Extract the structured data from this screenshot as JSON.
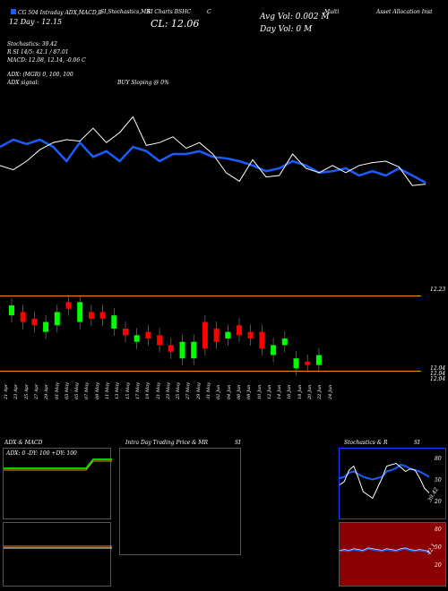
{
  "header": {
    "line1_left": "CG 504 Intraday ADX,MACD,B",
    "line1_stoch": "SI,Stochastics,MR",
    "line1_chart": "SI Charts BSHC",
    "line1_c": "C",
    "line1_right1": "Multi",
    "line1_right2": "Asset Allocation Inst",
    "line2_left": "12 Day - 12.15",
    "cl_label": "CL: 12.06",
    "avg_vol": "Avg Vol: 0.002 M",
    "day_vol": "Day Vol: 0 M",
    "stoch_value": "Stochastics: 39.42",
    "rsi_line": "R          SI 14/5: 42.1 / 87.01",
    "macd_line": "MACD: 12.08, 12.14, -0.06  C",
    "adx_line": "ADX:                    (MGR) 0,  100,  100",
    "adx_signal": "ADX  signal:",
    "buy_signal": "BUY Sloping @ 0%"
  },
  "price_labels": {
    "top": "12.23",
    "mid1": "12.04",
    "mid2": "12.04",
    "mid3": "12.04"
  },
  "dates": [
    "21 Apr",
    "23 Apr",
    "25 Apr",
    "27 Apr",
    "29 Apr",
    "01 May",
    "03 May",
    "05 May",
    "07 May",
    "09 May",
    "11 May",
    "13 May",
    "15 May",
    "17 May",
    "19 May",
    "21 May",
    "23 May",
    "25 May",
    "27 May",
    "29 May",
    "31 May",
    "02 Jun",
    "04 Jun",
    "06 Jun",
    "08 Jun",
    "10 Jun",
    "12 Jun",
    "14 Jun",
    "16 Jun",
    "18 Jun",
    "20 Jun",
    "22 Jun",
    "24 Jun"
  ],
  "bottom_panels": {
    "adx_title": "ADX  & MACD",
    "adx_values": "ADX: 0   -DY: 100   +DY: 100",
    "intraday_title": "Intra  Day Trading Price  & MR",
    "intraday_si": "SI",
    "stoch_title": "Stochastics & R",
    "stoch_si": "SI",
    "stoch_axis": [
      "80",
      "50",
      "20"
    ],
    "stoch_value_label": "39.42",
    "rsi_axis": [
      "80",
      "50",
      "20"
    ],
    "rsi_value_label": "42.1"
  },
  "colors": {
    "accent": "#1a5cff",
    "up": "#00ff00",
    "down": "#ff0000",
    "rsi_bg": "#8b0000",
    "panel_line": "#ff8c00"
  },
  "chart_data": {
    "type": "line",
    "series": [
      {
        "values": [
          65,
          70,
          67,
          70,
          65,
          55,
          68,
          58,
          62,
          55,
          65,
          62,
          55,
          60,
          60,
          62,
          58,
          57,
          55,
          52,
          48,
          50,
          55,
          52,
          47,
          48,
          50,
          45,
          48,
          45,
          50,
          45,
          40
        ]
      },
      {
        "values": [
          52,
          49,
          55,
          63,
          68,
          70,
          69,
          78,
          68,
          75,
          86,
          66,
          68,
          72,
          64,
          68,
          60,
          47,
          41,
          56,
          44,
          45,
          60,
          50,
          47,
          52,
          47,
          52,
          54,
          55,
          51,
          38,
          39
        ]
      }
    ],
    "candles": [
      {
        "o": 12.17,
        "c": 12.2,
        "up": true
      },
      {
        "o": 12.18,
        "c": 12.15,
        "up": false
      },
      {
        "o": 12.16,
        "c": 12.14,
        "up": false
      },
      {
        "o": 12.12,
        "c": 12.15,
        "up": true
      },
      {
        "o": 12.14,
        "c": 12.18,
        "up": true
      },
      {
        "o": 12.19,
        "c": 12.21,
        "up": false
      },
      {
        "o": 12.15,
        "c": 12.21,
        "up": true
      },
      {
        "o": 12.18,
        "c": 12.16,
        "up": false
      },
      {
        "o": 12.18,
        "c": 12.16,
        "up": false
      },
      {
        "o": 12.13,
        "c": 12.17,
        "up": true
      },
      {
        "o": 12.13,
        "c": 12.11,
        "up": false
      },
      {
        "o": 12.09,
        "c": 12.11,
        "up": true
      },
      {
        "o": 12.12,
        "c": 12.1,
        "up": false
      },
      {
        "o": 12.11,
        "c": 12.08,
        "up": false
      },
      {
        "o": 12.06,
        "c": 12.08,
        "up": false
      },
      {
        "o": 12.04,
        "c": 12.09,
        "up": true
      },
      {
        "o": 12.04,
        "c": 12.09,
        "up": true
      },
      {
        "o": 12.07,
        "c": 12.15,
        "up": false
      },
      {
        "o": 12.13,
        "c": 12.09,
        "up": false
      },
      {
        "o": 12.1,
        "c": 12.12,
        "up": true
      },
      {
        "o": 12.11,
        "c": 12.14,
        "up": false
      },
      {
        "o": 12.1,
        "c": 12.12,
        "up": false
      },
      {
        "o": 12.12,
        "c": 12.07,
        "up": false
      },
      {
        "o": 12.08,
        "c": 12.05,
        "up": true
      },
      {
        "o": 12.08,
        "c": 12.1,
        "up": true
      },
      {
        "o": 12.04,
        "c": 12.01,
        "up": true
      },
      {
        "o": 12.03,
        "c": 12.02,
        "up": false
      },
      {
        "o": 12.02,
        "c": 12.05,
        "up": true
      }
    ]
  }
}
